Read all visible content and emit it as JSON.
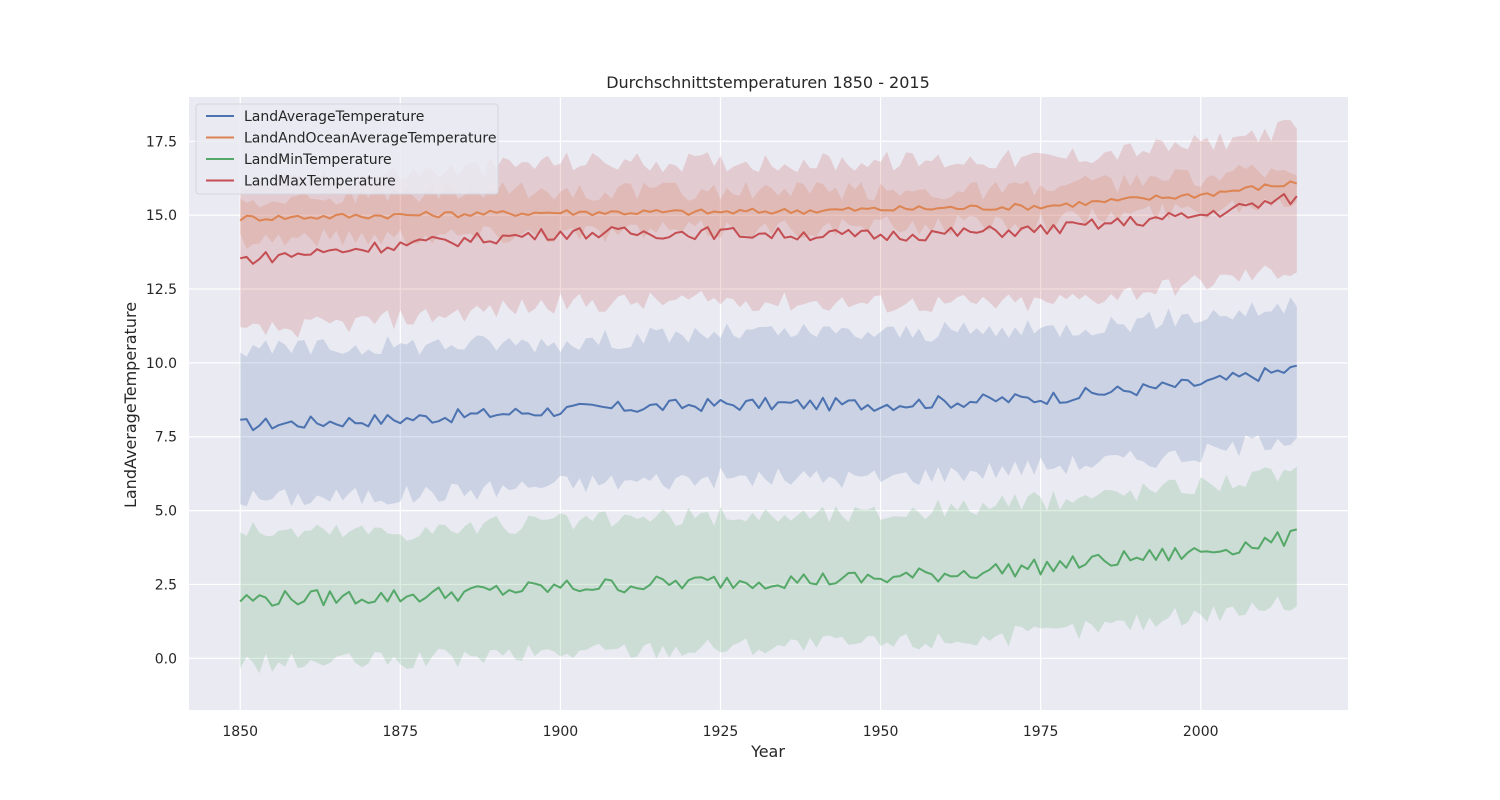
{
  "chart_data": {
    "type": "line",
    "title": "Durchschnittstemperaturen 1850 - 2015",
    "xlabel": "Year",
    "ylabel": "LandAverageTemperature",
    "xlim": [
      1842,
      2023
    ],
    "ylim": [
      -1.75,
      19.0
    ],
    "x_ticks": [
      1850,
      1875,
      1900,
      1925,
      1950,
      1975,
      2000
    ],
    "y_ticks": [
      0.0,
      2.5,
      5.0,
      7.5,
      10.0,
      12.5,
      15.0,
      17.5
    ],
    "x_tick_labels": [
      "1850",
      "1875",
      "1900",
      "1925",
      "1950",
      "1975",
      "2000"
    ],
    "y_tick_labels": [
      "0.0",
      "2.5",
      "5.0",
      "7.5",
      "10.0",
      "12.5",
      "15.0",
      "17.5"
    ],
    "grid": true,
    "legend_position": "upper-left",
    "background_color": "#EAEAF2",
    "x": [
      1850,
      1875,
      1900,
      1925,
      1950,
      1975,
      2000,
      2015
    ],
    "series": [
      {
        "name": "LandAverageTemperature",
        "color": "#4C72B0",
        "values": [
          7.9,
          8.1,
          8.4,
          8.6,
          8.6,
          8.8,
          9.3,
          9.8
        ],
        "band_low": [
          5.4,
          5.5,
          5.9,
          6.1,
          6.1,
          6.5,
          6.9,
          7.6
        ],
        "band_high": [
          10.4,
          10.6,
          10.7,
          11.0,
          11.0,
          11.1,
          11.6,
          11.9
        ]
      },
      {
        "name": "LandAndOceanAverageTemperature",
        "color": "#DD8452",
        "values": [
          14.9,
          15.0,
          15.1,
          15.1,
          15.2,
          15.3,
          15.7,
          16.1
        ],
        "band_low": [
          14.2,
          14.3,
          14.4,
          14.5,
          14.6,
          14.8,
          15.2,
          15.6
        ],
        "band_high": [
          15.6,
          15.7,
          15.8,
          15.8,
          15.8,
          15.9,
          16.3,
          16.6
        ]
      },
      {
        "name": "LandMinTemperature",
        "color": "#55A868",
        "values": [
          2.0,
          2.1,
          2.4,
          2.6,
          2.7,
          3.1,
          3.6,
          4.1
        ],
        "band_low": [
          -0.2,
          -0.1,
          0.2,
          0.4,
          0.5,
          0.8,
          1.5,
          1.9
        ],
        "band_high": [
          4.3,
          4.3,
          4.6,
          4.8,
          4.9,
          5.3,
          5.9,
          6.3
        ]
      },
      {
        "name": "LandMaxTemperature",
        "color": "#C44E52",
        "values": [
          13.5,
          14.0,
          14.4,
          14.4,
          14.3,
          14.5,
          15.0,
          15.6
        ],
        "band_low": [
          11.0,
          11.5,
          12.0,
          12.1,
          12.0,
          12.0,
          12.7,
          13.2
        ],
        "band_high": [
          16.0,
          16.4,
          16.8,
          16.8,
          16.8,
          16.9,
          17.4,
          18.0
        ]
      }
    ]
  }
}
